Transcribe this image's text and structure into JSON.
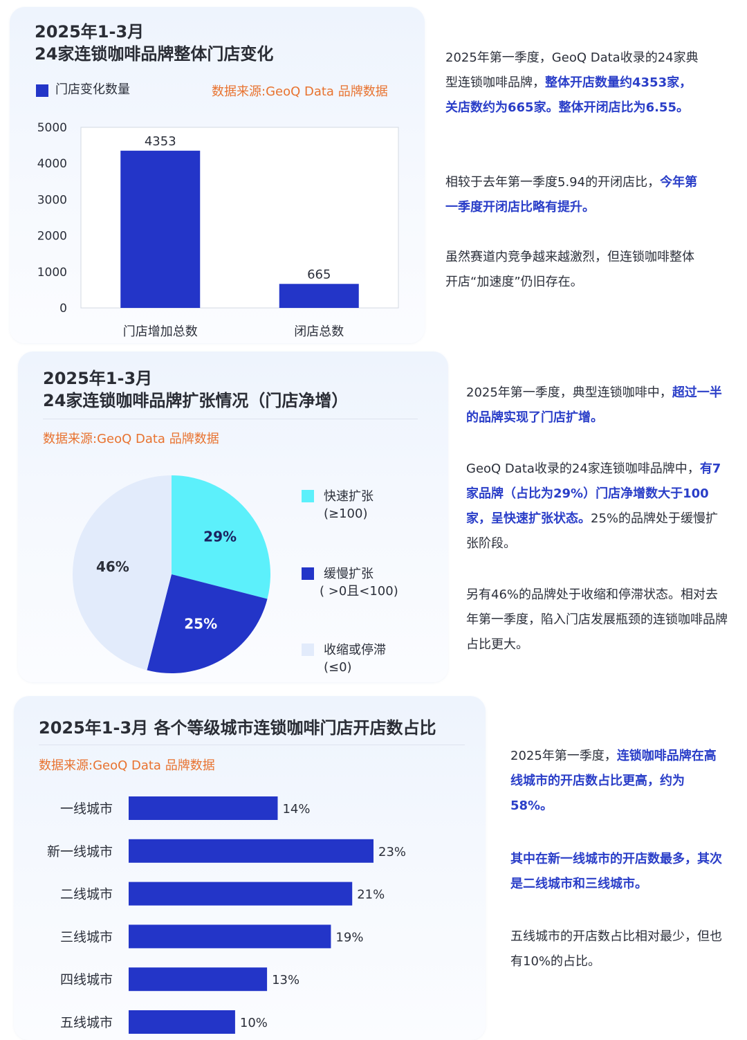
{
  "colors": {
    "bar": "#2335c8",
    "accent": "#2a3ec8",
    "source": "#e8722f",
    "cyan": "#5cf0fb",
    "pale": "#e2ebfb"
  },
  "section1": {
    "title_line1": "2025年1-3月",
    "title_line2": "24家连锁咖啡品牌整体门店变化",
    "legend": "门店变化数量",
    "source": "数据来源:GeoQ Data 品牌数据",
    "text": {
      "p1_a": "2025年第一季度，GeoQ Data收录的24家典型连锁咖啡品牌，",
      "p1_b": "整体开店数量约4353家，关店数约为665家。整体开闭店比为6.55。",
      "p2_a": "相较于去年第一季度5.94的开闭店比，",
      "p2_b": "今年第一季度开闭店比略有提升。",
      "p3": "虽然赛道内竞争越来越激烈，但连锁咖啡整体开店“加速度”仍旧存在。"
    }
  },
  "section2": {
    "title_line1": "2025年1-3月",
    "title_line2": "24家连锁咖啡品牌扩张情况（门店净增）",
    "source": "数据来源:GeoQ Data 品牌数据",
    "legend": [
      {
        "line1": "快速扩张",
        "line2": "(≥100)",
        "color": "#5cf0fb"
      },
      {
        "line1": "缓慢扩张",
        "line2": "( >0且<100)",
        "color": "#2335c8"
      },
      {
        "line1": "收缩或停滞",
        "line2": "(≤0)",
        "color": "#e2ebfb"
      }
    ],
    "text": {
      "p1_a": "2025年第一季度，典型连锁咖啡中，",
      "p1_b": "超过一半的品牌实现了门店扩增。",
      "p2_a": "GeoQ Data收录的24家连锁咖啡品牌中，",
      "p2_b": "有7家品牌（占比为29%）门店净增数大于100家，呈快速扩张状态。",
      "p2_c": "25%的品牌处于缓慢扩张阶段。",
      "p3": "另有46%的品牌处于收缩和停滞状态。相对去年第一季度，陷入门店发展瓶颈的连锁咖啡品牌占比更大。"
    }
  },
  "section3": {
    "title": "2025年1-3月 各个等级城市连锁咖啡门店开店数占比",
    "source": "数据来源:GeoQ Data 品牌数据",
    "text": {
      "p1_a": "2025年第一季度，",
      "p1_b": "连锁咖啡品牌在高线城市的开店数占比更高，约为58%。",
      "p2": "其中在新一线城市的开店数最多，其次是二线城市和三线城市。",
      "p3": "五线城市的开店数占比相对最少，但也有10%的占比。"
    }
  },
  "chart_data": [
    {
      "type": "bar",
      "categories": [
        "门店增加总数",
        "闭店总数"
      ],
      "series": [
        {
          "name": "门店变化数量",
          "values": [
            4353,
            665
          ]
        }
      ],
      "ylim": [
        0,
        5000
      ],
      "yticks": [
        0,
        1000,
        2000,
        3000,
        4000,
        5000
      ],
      "data_labels": [
        "4353",
        "665"
      ],
      "legend": "top-left"
    },
    {
      "type": "pie",
      "labels": [
        "快速扩张(≥100)",
        "缓慢扩张( >0且<100)",
        "收缩或停滞(≤0)"
      ],
      "values": [
        29,
        25,
        46
      ],
      "data_labels": [
        "29%",
        "25%",
        "46%"
      ],
      "colors": [
        "#5cf0fb",
        "#2335c8",
        "#e2ebfb"
      ],
      "legend": "right"
    },
    {
      "type": "bar",
      "orientation": "horizontal",
      "categories": [
        "一线城市",
        "新一线城市",
        "二线城市",
        "三线城市",
        "四线城市",
        "五线城市"
      ],
      "values": [
        14,
        23,
        21,
        19,
        13,
        10
      ],
      "data_labels": [
        "14%",
        "23%",
        "21%",
        "19%",
        "13%",
        "10%"
      ]
    }
  ]
}
